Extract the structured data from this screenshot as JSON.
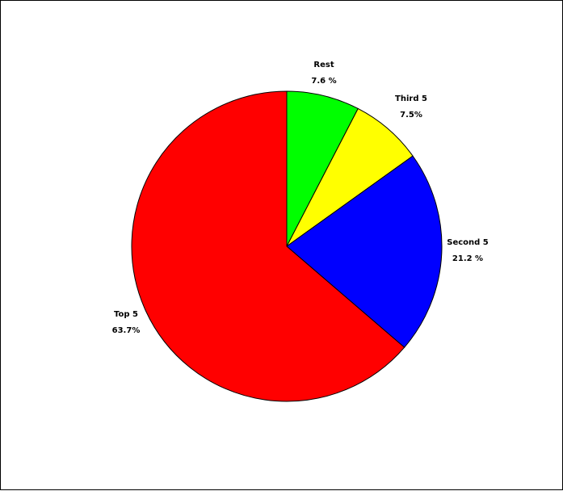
{
  "chart_data": {
    "type": "pie",
    "start_angle_deg": 90,
    "direction": "clockwise",
    "slices": [
      {
        "label": "Rest",
        "value": 7.6,
        "value_text": "7.6 %",
        "color": "#00ff00"
      },
      {
        "label": "Third 5",
        "value": 7.5,
        "value_text": "7.5%",
        "color": "#ffff00"
      },
      {
        "label": "Second 5",
        "value": 21.2,
        "value_text": "21.2 %",
        "color": "#0000ff"
      },
      {
        "label": "Top 5",
        "value": 63.7,
        "value_text": "63.7%",
        "color": "#ff0000"
      }
    ]
  }
}
